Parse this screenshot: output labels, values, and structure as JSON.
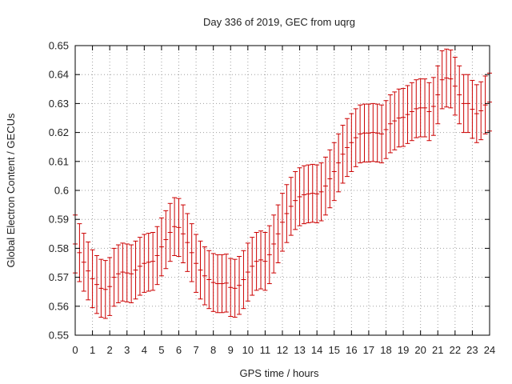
{
  "chart_data": {
    "type": "scatter",
    "title": "Day 336 of 2019, GEC from uqrg",
    "xlabel": "GPS time / hours",
    "ylabel": "Global Electron Content / GECUs",
    "xlim": [
      0,
      24
    ],
    "ylim": [
      0.55,
      0.65
    ],
    "xticks": [
      0,
      1,
      2,
      3,
      4,
      5,
      6,
      7,
      8,
      9,
      10,
      11,
      12,
      13,
      14,
      15,
      16,
      17,
      18,
      19,
      20,
      21,
      22,
      23,
      24
    ],
    "yticks": [
      "0.55",
      "0.56",
      "0.57",
      "0.58",
      "0.59",
      "0.6",
      "0.61",
      "0.62",
      "0.63",
      "0.64",
      "0.65"
    ],
    "grid": true,
    "error_bar_halfwidth": 0.01,
    "series": [
      {
        "color": "#cc0000",
        "x": [
          0.0,
          0.25,
          0.5,
          0.75,
          1.0,
          1.25,
          1.5,
          1.75,
          2.0,
          2.25,
          2.5,
          2.75,
          3.0,
          3.25,
          3.5,
          3.75,
          4.0,
          4.25,
          4.5,
          4.75,
          5.0,
          5.25,
          5.5,
          5.75,
          6.0,
          6.25,
          6.5,
          6.75,
          7.0,
          7.25,
          7.5,
          7.75,
          8.0,
          8.25,
          8.5,
          8.75,
          9.0,
          9.25,
          9.5,
          9.75,
          10.0,
          10.25,
          10.5,
          10.75,
          11.0,
          11.25,
          11.5,
          11.75,
          12.0,
          12.25,
          12.5,
          12.75,
          13.0,
          13.25,
          13.5,
          13.75,
          14.0,
          14.25,
          14.5,
          14.75,
          15.0,
          15.25,
          15.5,
          15.75,
          16.0,
          16.25,
          16.5,
          16.75,
          17.0,
          17.25,
          17.5,
          17.75,
          18.0,
          18.25,
          18.5,
          18.75,
          19.0,
          19.25,
          19.5,
          19.75,
          20.0,
          20.25,
          20.5,
          20.75,
          21.0,
          21.25,
          21.5,
          21.75,
          22.0,
          22.25,
          22.5,
          22.75,
          23.0,
          23.25,
          23.5,
          23.75,
          24.0
        ],
        "y": [
          0.5815,
          0.5785,
          0.5752,
          0.5722,
          0.5695,
          0.5675,
          0.5662,
          0.5658,
          0.5668,
          0.57,
          0.5712,
          0.5718,
          0.5715,
          0.5712,
          0.5725,
          0.5738,
          0.5748,
          0.5752,
          0.5755,
          0.5775,
          0.5805,
          0.583,
          0.5855,
          0.5875,
          0.5872,
          0.585,
          0.582,
          0.5785,
          0.5748,
          0.5725,
          0.5705,
          0.5692,
          0.5682,
          0.5678,
          0.5678,
          0.568,
          0.5665,
          0.5662,
          0.5672,
          0.5692,
          0.5718,
          0.5738,
          0.5755,
          0.576,
          0.5755,
          0.5778,
          0.5815,
          0.585,
          0.589,
          0.592,
          0.5945,
          0.5965,
          0.5978,
          0.5985,
          0.5988,
          0.599,
          0.5988,
          0.5995,
          0.6015,
          0.604,
          0.6065,
          0.6095,
          0.6125,
          0.6148,
          0.6165,
          0.6182,
          0.6195,
          0.6198,
          0.6198,
          0.62,
          0.6198,
          0.6195,
          0.621,
          0.623,
          0.624,
          0.625,
          0.6252,
          0.6262,
          0.6272,
          0.6282,
          0.6285,
          0.6285,
          0.6272,
          0.629,
          0.633,
          0.6382,
          0.6388,
          0.6385,
          0.636,
          0.633,
          0.63,
          0.63,
          0.628,
          0.6265,
          0.6275,
          0.6295,
          0.6305
        ]
      }
    ]
  }
}
